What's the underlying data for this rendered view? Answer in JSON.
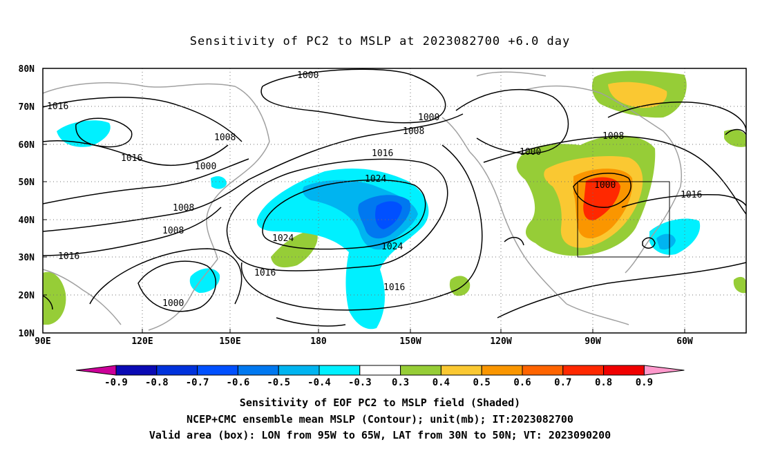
{
  "title": "Sensitivity of PC2 to MSLP at 2023082700 +6.0 day",
  "lat_labels": [
    "80N",
    "70N",
    "60N",
    "50N",
    "40N",
    "30N",
    "20N",
    "10N"
  ],
  "lon_labels": [
    "90E",
    "120E",
    "150E",
    "180",
    "150W",
    "120W",
    "90W",
    "60W"
  ],
  "colorbar": {
    "labels": [
      "-0.9",
      "-0.8",
      "-0.7",
      "-0.6",
      "-0.5",
      "-0.4",
      "-0.3",
      "0.3",
      "0.4",
      "0.5",
      "0.6",
      "0.7",
      "0.8",
      "0.9"
    ],
    "colors": [
      "#cc0099",
      "#0a0ab4",
      "#0032dc",
      "#0050ff",
      "#0078f0",
      "#00b4f0",
      "#00f0ff",
      "#ffffff",
      "#96cd37",
      "#fac832",
      "#fa9600",
      "#ff6400",
      "#ff2800",
      "#f00000",
      "#ff99cc"
    ]
  },
  "contour_labels": [
    "1000",
    "1016",
    "1000",
    "1008",
    "1000",
    "1016",
    "1016",
    "1008",
    "1008",
    "1016",
    "1024",
    "1024",
    "1024",
    "1016",
    "1016",
    "1000",
    "1000",
    "1008",
    "1000",
    "1008",
    "1016"
  ],
  "caption": {
    "line1": "Sensitivity of EOF PC2 to MSLP field (Shaded)",
    "line2": "NCEP+CMC ensemble mean MSLP (Contour); unit(mb); IT:2023082700",
    "line3": "Valid area (box): LON from 95W to 65W, LAT from 30N to 50N; VT: 2023090200"
  }
}
